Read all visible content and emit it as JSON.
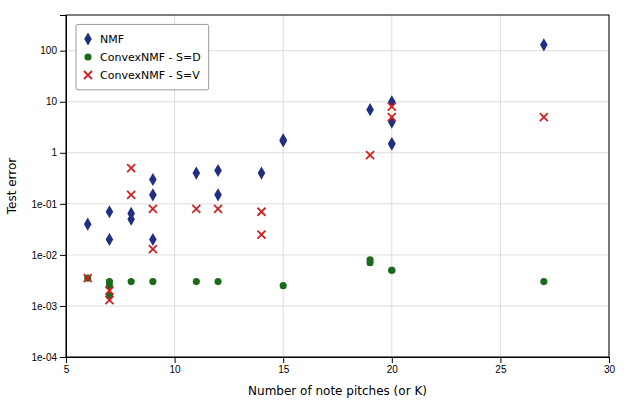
{
  "chart_data": {
    "type": "scatter",
    "xlabel": "Number of note pitches (or K)",
    "ylabel": "Test error",
    "log": "y",
    "grid": true,
    "legend": "upper left",
    "xlim": [
      5,
      30
    ],
    "ylim": [
      0.0001,
      500
    ],
    "xticks": [
      5,
      10,
      15,
      20,
      25,
      30
    ],
    "yticks": [
      {
        "value": 0.0001,
        "label": "1e-04"
      },
      {
        "value": 0.001,
        "label": "1e-03"
      },
      {
        "value": 0.01,
        "label": "1e-02"
      },
      {
        "value": 0.1,
        "label": "1e-01"
      },
      {
        "value": 1,
        "label": "1"
      },
      {
        "value": 10,
        "label": "10"
      },
      {
        "value": 100,
        "label": "100"
      }
    ],
    "series": [
      {
        "name": "NMF",
        "color": "#1F3080",
        "marker": "diamond",
        "x": [
          6,
          7,
          7,
          8,
          8,
          9,
          9,
          9,
          11,
          12,
          12,
          14,
          15,
          15,
          19,
          20,
          20,
          20,
          20,
          27
        ],
        "values": [
          0.04,
          0.07,
          0.02,
          0.05,
          0.065,
          0.3,
          0.02,
          0.15,
          0.4,
          0.45,
          0.15,
          0.4,
          1.8,
          1.7,
          7.0,
          10.0,
          4.0,
          1.5,
          1.5,
          130.0
        ]
      },
      {
        "name": "ConvexNMF - S=D",
        "color": "#1A6B1A",
        "marker": "circle",
        "x": [
          6,
          7,
          7,
          7,
          8,
          9,
          11,
          12,
          15,
          19,
          19,
          20,
          20,
          27
        ],
        "values": [
          0.0035,
          0.003,
          0.0025,
          0.0016,
          0.003,
          0.003,
          0.003,
          0.003,
          0.0025,
          0.007,
          0.008,
          0.005,
          0.005,
          0.003
        ]
      },
      {
        "name": "ConvexNMF - S=V",
        "color": "#CC2222",
        "marker": "x",
        "x": [
          6,
          7,
          7,
          8,
          8,
          9,
          9,
          11,
          12,
          14,
          14,
          19,
          20,
          20,
          27
        ],
        "values": [
          0.0035,
          0.0013,
          0.002,
          0.5,
          0.15,
          0.08,
          0.013,
          0.08,
          0.08,
          0.07,
          0.025,
          0.9,
          8.0,
          5.0,
          5.0
        ]
      }
    ]
  }
}
